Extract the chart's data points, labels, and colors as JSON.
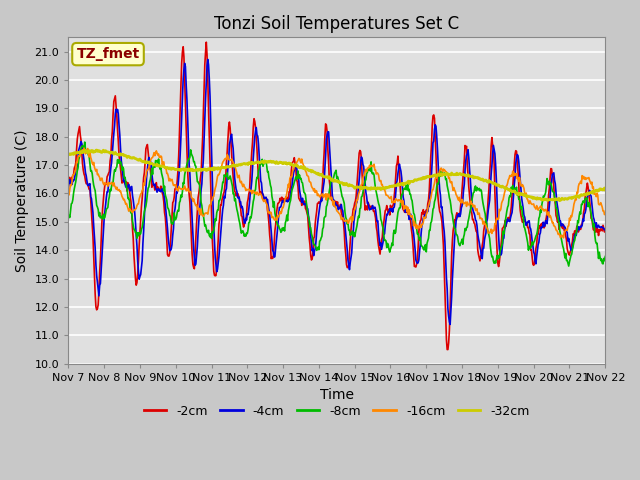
{
  "title": "Tonzi Soil Temperatures Set C",
  "xlabel": "Time",
  "ylabel": "Soil Temperature (C)",
  "ylim": [
    10.0,
    21.5
  ],
  "yticks": [
    10.0,
    11.0,
    12.0,
    13.0,
    14.0,
    15.0,
    16.0,
    17.0,
    18.0,
    19.0,
    20.0,
    21.0
  ],
  "x_tick_labels": [
    "Nov 7",
    "Nov 8",
    "Nov 9",
    "Nov 10",
    "Nov 11",
    "Nov 12",
    "Nov 13",
    "Nov 14",
    "Nov 15",
    "Nov 16",
    "Nov 17",
    "Nov 18",
    "Nov 19",
    "Nov 20",
    "Nov 21",
    "Nov 22"
  ],
  "series_colors": {
    "-2cm": "#dd0000",
    "-4cm": "#0000dd",
    "-8cm": "#00bb00",
    "-16cm": "#ff8800",
    "-32cm": "#cccc00"
  },
  "series_lw": {
    "-2cm": 1.2,
    "-4cm": 1.2,
    "-8cm": 1.2,
    "-16cm": 1.2,
    "-32cm": 2.0
  },
  "annotation_label": "TZ_fmet",
  "annotation_text_color": "#8b0000",
  "annotation_bg_color": "#ffffcc",
  "annotation_border_color": "#aaaa00",
  "fig_bg_color": "#c8c8c8",
  "plot_bg_color": "#e0e0e0",
  "grid_color": "#ffffff",
  "title_fontsize": 12,
  "axis_label_fontsize": 10,
  "tick_fontsize": 8,
  "legend_fontsize": 9
}
